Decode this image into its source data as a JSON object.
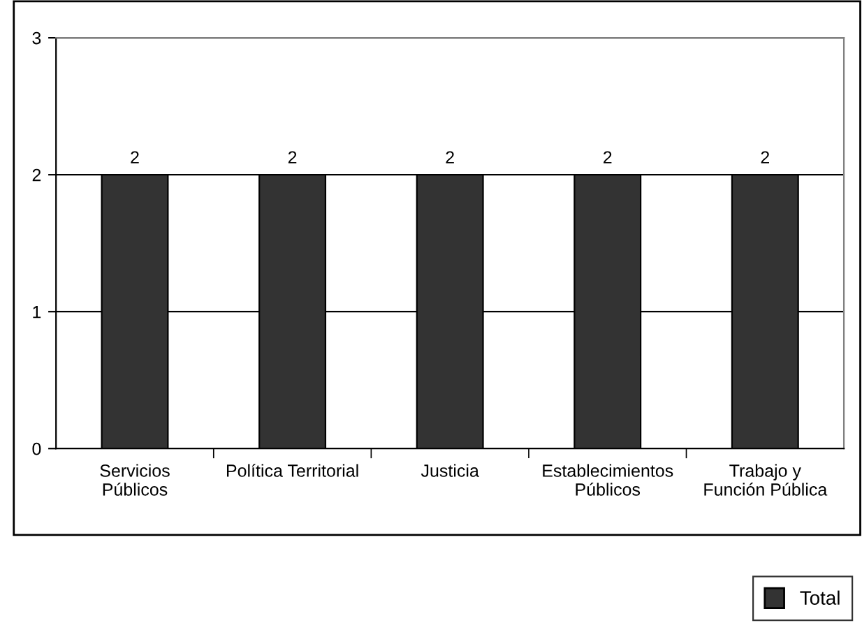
{
  "chart_data": {
    "type": "bar",
    "categories": [
      "Servicios\nPúblicos",
      "Política Territorial",
      "Justicia",
      "Establecimientos\nPúblicos",
      "Trabajo y\nFunción Pública"
    ],
    "series": [
      {
        "name": "Total",
        "color": "#333333",
        "values": [
          2,
          2,
          2,
          2,
          2
        ]
      }
    ],
    "ylim": [
      0,
      3
    ],
    "yticks": [
      0,
      1,
      2,
      3
    ],
    "grid": "y",
    "data_labels": true,
    "legend": "bottom right"
  }
}
